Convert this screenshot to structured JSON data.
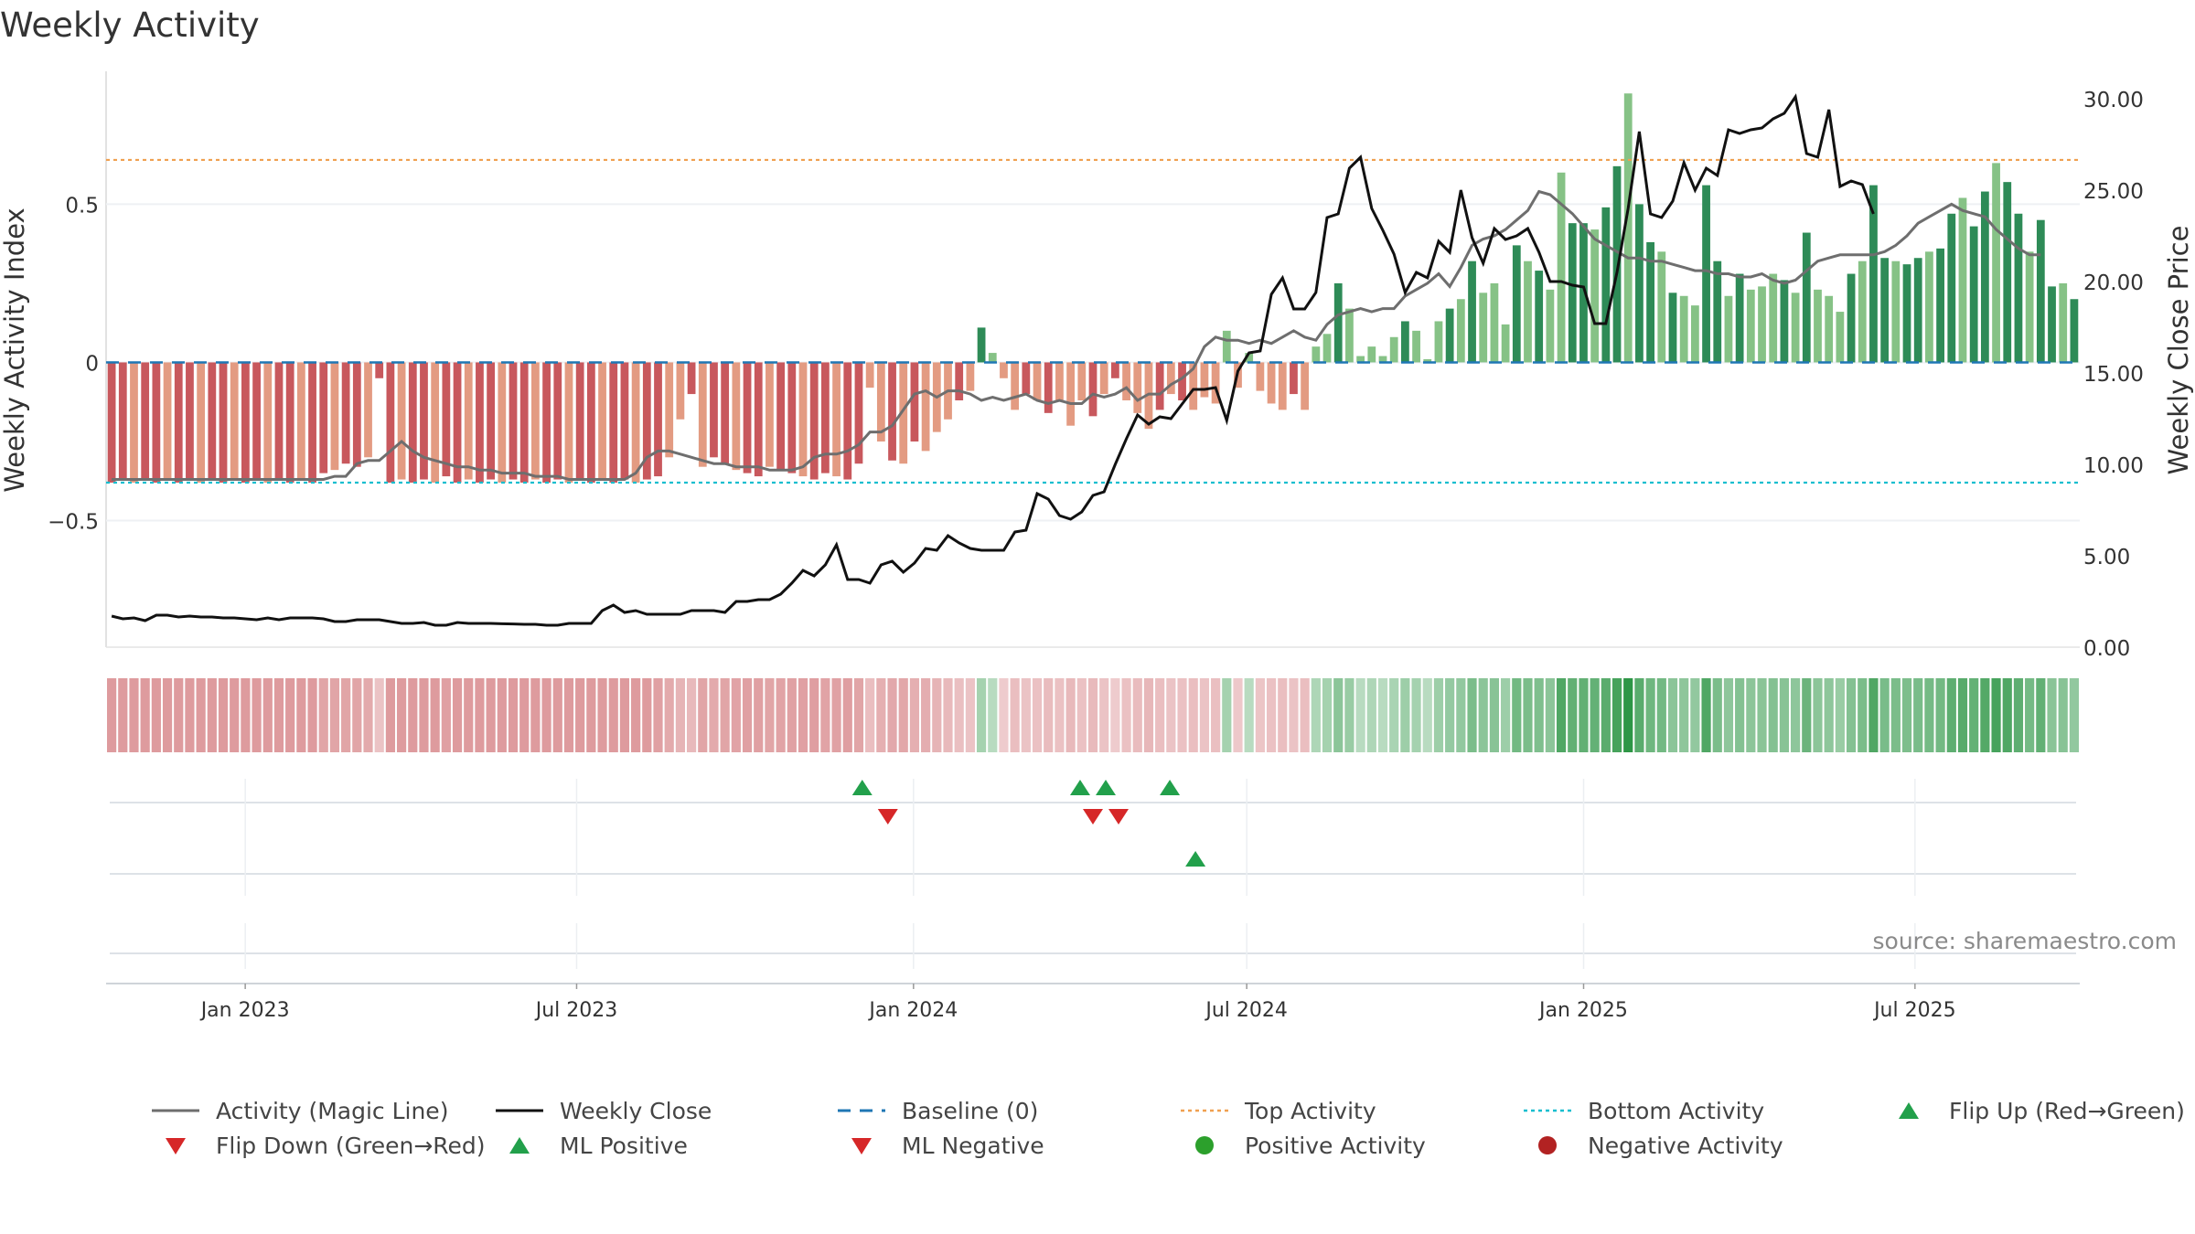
{
  "title": "Weekly Activity",
  "source_note": "source: sharemaestro.com",
  "colors": {
    "strong_red": "#c8585d",
    "light_red": "#e39b82",
    "strong_green": "#2e8b57",
    "light_green": "#86c286",
    "magic_line": "#6e6e6e",
    "close_line": "#111111",
    "baseline": "#1f77b4",
    "top_activity": "#f0a050",
    "bottom_activity": "#17becf",
    "flip_up": "#22a04b",
    "flip_down": "#d62728",
    "positive_dot": "#2ca02c",
    "negative_dot": "#b22222"
  },
  "chart_data": {
    "type": "bar",
    "title": "Weekly Activity",
    "ylabel": "Weekly Activity Index",
    "y2label": "Weekly Close Price",
    "ylim": [
      -0.9,
      0.92
    ],
    "y2lim": [
      0,
      31.5
    ],
    "yticks": [
      "0.5",
      "0",
      "−0.5"
    ],
    "yticks_values": [
      0.5,
      0,
      -0.5
    ],
    "y2ticks": [
      "30.00",
      "25.00",
      "20.00",
      "15.00",
      "10.00",
      "5.00",
      "0.00"
    ],
    "y2ticks_values": [
      30,
      25,
      20,
      15,
      10,
      5,
      0
    ],
    "x_start": "2022-10-17",
    "x_end": "2025-09-29",
    "xticks": [
      {
        "label": "Jan 2023",
        "date": "2023-01-01"
      },
      {
        "label": "Jul 2023",
        "date": "2023-07-01"
      },
      {
        "label": "Jan 2024",
        "date": "2024-01-01"
      },
      {
        "label": "Jul 2024",
        "date": "2024-07-01"
      },
      {
        "label": "Jan 2025",
        "date": "2025-01-01"
      },
      {
        "label": "Jul 2025",
        "date": "2025-07-01"
      }
    ],
    "top_activity": 0.64,
    "bottom_activity": -0.38,
    "baseline": 0,
    "activity": [
      -0.38,
      -0.37,
      -0.38,
      -0.37,
      -0.38,
      -0.37,
      -0.38,
      -0.37,
      -0.38,
      -0.37,
      -0.38,
      -0.37,
      -0.38,
      -0.37,
      -0.38,
      -0.37,
      -0.38,
      -0.37,
      -0.38,
      -0.35,
      -0.34,
      -0.32,
      -0.33,
      -0.3,
      -0.05,
      -0.38,
      -0.37,
      -0.38,
      -0.37,
      -0.38,
      -0.36,
      -0.38,
      -0.37,
      -0.38,
      -0.37,
      -0.38,
      -0.37,
      -0.38,
      -0.37,
      -0.38,
      -0.37,
      -0.38,
      -0.37,
      -0.38,
      -0.37,
      -0.38,
      -0.37,
      -0.38,
      -0.37,
      -0.36,
      -0.3,
      -0.18,
      -0.1,
      -0.33,
      -0.3,
      -0.32,
      -0.34,
      -0.35,
      -0.36,
      -0.33,
      -0.34,
      -0.35,
      -0.36,
      -0.37,
      -0.35,
      -0.36,
      -0.37,
      -0.32,
      -0.08,
      -0.25,
      -0.31,
      -0.32,
      -0.25,
      -0.28,
      -0.22,
      -0.18,
      -0.12,
      -0.09,
      0.11,
      0.03,
      -0.05,
      -0.15,
      -0.1,
      -0.12,
      -0.16,
      -0.12,
      -0.2,
      -0.12,
      -0.17,
      -0.1,
      -0.05,
      -0.12,
      -0.16,
      -0.21,
      -0.15,
      -0.1,
      -0.12,
      -0.15,
      -0.11,
      -0.13,
      0.1,
      -0.08,
      0.03,
      -0.09,
      -0.13,
      -0.15,
      -0.1,
      -0.15,
      0.05,
      0.09,
      0.25,
      0.17,
      0.02,
      0.05,
      0.02,
      0.08,
      0.13,
      0.1,
      0.01,
      0.13,
      0.17,
      0.2,
      0.32,
      0.22,
      0.25,
      0.12,
      0.37,
      0.32,
      0.29,
      0.23,
      0.6,
      0.44,
      0.44,
      0.42,
      0.49,
      0.62,
      0.85,
      0.5,
      0.38,
      0.35,
      0.22,
      0.21,
      0.18,
      0.56,
      0.32,
      0.21,
      0.28,
      0.23,
      0.24,
      0.28,
      0.26,
      0.22,
      0.41,
      0.23,
      0.21,
      0.16,
      0.28,
      0.32,
      0.56,
      0.33,
      0.32,
      0.31,
      0.33,
      0.35,
      0.36,
      0.47,
      0.52,
      0.43,
      0.54,
      0.63,
      0.57,
      0.47,
      0.35,
      0.45,
      0.24,
      0.25,
      0.2
    ],
    "magic_line": [
      -0.37,
      -0.37,
      -0.37,
      -0.37,
      -0.37,
      -0.37,
      -0.37,
      -0.37,
      -0.37,
      -0.37,
      -0.37,
      -0.37,
      -0.37,
      -0.37,
      -0.37,
      -0.37,
      -0.37,
      -0.37,
      -0.37,
      -0.37,
      -0.36,
      -0.36,
      -0.32,
      -0.31,
      -0.31,
      -0.28,
      -0.25,
      -0.28,
      -0.3,
      -0.31,
      -0.32,
      -0.33,
      -0.33,
      -0.34,
      -0.34,
      -0.35,
      -0.35,
      -0.35,
      -0.36,
      -0.36,
      -0.36,
      -0.37,
      -0.37,
      -0.37,
      -0.37,
      -0.37,
      -0.37,
      -0.35,
      -0.3,
      -0.28,
      -0.28,
      -0.29,
      -0.3,
      -0.31,
      -0.32,
      -0.32,
      -0.33,
      -0.33,
      -0.33,
      -0.34,
      -0.34,
      -0.34,
      -0.33,
      -0.3,
      -0.29,
      -0.29,
      -0.28,
      -0.26,
      -0.22,
      -0.22,
      -0.2,
      -0.15,
      -0.1,
      -0.09,
      -0.11,
      -0.09,
      -0.09,
      -0.1,
      -0.12,
      -0.11,
      -0.12,
      -0.11,
      -0.1,
      -0.12,
      -0.13,
      -0.12,
      -0.13,
      -0.13,
      -0.1,
      -0.11,
      -0.1,
      -0.08,
      -0.12,
      -0.1,
      -0.1,
      -0.07,
      -0.05,
      -0.02,
      0.05,
      0.08,
      0.07,
      0.07,
      0.06,
      0.07,
      0.06,
      0.08,
      0.1,
      0.08,
      0.07,
      0.12,
      0.15,
      0.16,
      0.17,
      0.16,
      0.17,
      0.17,
      0.21,
      0.23,
      0.25,
      0.28,
      0.24,
      0.3,
      0.37,
      0.39,
      0.4,
      0.42,
      0.45,
      0.48,
      0.54,
      0.53,
      0.5,
      0.47,
      0.43,
      0.39,
      0.37,
      0.35,
      0.33,
      0.33,
      0.32,
      0.32,
      0.31,
      0.3,
      0.29,
      0.29,
      0.28,
      0.28,
      0.27,
      0.27,
      0.28,
      0.26,
      0.25,
      0.26,
      0.29,
      0.32,
      0.33,
      0.34,
      0.34,
      0.34,
      0.34,
      0.35,
      0.37,
      0.4,
      0.44,
      0.46,
      0.48,
      0.5,
      0.48,
      0.47,
      0.46,
      0.42,
      0.39,
      0.36,
      0.34,
      0.34
    ],
    "weekly_close": [
      1.7,
      1.55,
      1.6,
      1.45,
      1.75,
      1.75,
      1.65,
      1.7,
      1.65,
      1.65,
      1.6,
      1.6,
      1.55,
      1.5,
      1.6,
      1.5,
      1.6,
      1.6,
      1.6,
      1.55,
      1.4,
      1.4,
      1.5,
      1.5,
      1.5,
      1.4,
      1.3,
      1.3,
      1.35,
      1.2,
      1.2,
      1.35,
      1.3,
      1.3,
      1.3,
      1.28,
      1.27,
      1.25,
      1.25,
      1.2,
      1.2,
      1.3,
      1.3,
      1.3,
      2.0,
      2.3,
      1.9,
      2.0,
      1.8,
      1.8,
      1.8,
      1.8,
      2.0,
      2.0,
      2.0,
      1.9,
      2.5,
      2.5,
      2.6,
      2.6,
      2.9,
      3.5,
      4.2,
      3.9,
      4.5,
      5.6,
      3.7,
      3.7,
      3.5,
      4.5,
      4.7,
      4.1,
      4.6,
      5.4,
      5.3,
      6.1,
      5.7,
      5.4,
      5.3,
      5.3,
      5.3,
      6.3,
      6.4,
      8.4,
      8.1,
      7.2,
      7.0,
      7.4,
      8.3,
      8.5,
      10.0,
      11.4,
      12.7,
      12.2,
      12.6,
      12.5,
      13.3,
      14.1,
      14.1,
      14.2,
      12.4,
      15.1,
      16.1,
      16.2,
      19.3,
      20.2,
      18.5,
      18.5,
      19.4,
      23.5,
      23.7,
      26.2,
      26.8,
      24.0,
      22.8,
      21.5,
      19.4,
      20.5,
      20.2,
      22.2,
      21.6,
      25.0,
      22.4,
      21.0,
      22.9,
      22.3,
      22.5,
      22.9,
      21.6,
      20.0,
      20.0,
      19.8,
      19.7,
      17.7,
      17.7,
      20.5,
      24.0,
      28.2,
      23.7,
      23.5,
      24.4,
      26.5,
      25.0,
      26.2,
      25.8,
      28.3,
      28.1,
      28.3,
      28.4,
      28.9,
      29.2,
      30.1,
      27.0,
      26.8,
      29.4,
      25.2,
      25.5,
      25.3,
      23.7
    ],
    "heatmap": [
      -0.7,
      -0.7,
      -0.7,
      -0.7,
      -0.7,
      -0.7,
      -0.7,
      -0.7,
      -0.7,
      -0.7,
      -0.7,
      -0.7,
      -0.7,
      -0.7,
      -0.7,
      -0.7,
      -0.7,
      -0.7,
      -0.7,
      -0.6,
      -0.6,
      -0.6,
      -0.6,
      -0.55,
      -0.3,
      -0.7,
      -0.7,
      -0.7,
      -0.7,
      -0.7,
      -0.65,
      -0.7,
      -0.7,
      -0.7,
      -0.7,
      -0.7,
      -0.7,
      -0.7,
      -0.7,
      -0.7,
      -0.7,
      -0.7,
      -0.7,
      -0.7,
      -0.7,
      -0.7,
      -0.7,
      -0.7,
      -0.7,
      -0.65,
      -0.55,
      -0.45,
      -0.4,
      -0.6,
      -0.55,
      -0.6,
      -0.62,
      -0.65,
      -0.65,
      -0.6,
      -0.62,
      -0.63,
      -0.65,
      -0.66,
      -0.62,
      -0.64,
      -0.66,
      -0.6,
      -0.35,
      -0.5,
      -0.56,
      -0.58,
      -0.5,
      -0.52,
      -0.45,
      -0.4,
      -0.33,
      -0.3,
      0.3,
      0.2,
      -0.22,
      -0.35,
      -0.3,
      -0.32,
      -0.36,
      -0.32,
      -0.4,
      -0.32,
      -0.38,
      -0.3,
      -0.22,
      -0.32,
      -0.36,
      -0.42,
      -0.35,
      -0.3,
      -0.32,
      -0.35,
      -0.3,
      -0.33,
      0.3,
      -0.25,
      0.2,
      -0.28,
      -0.32,
      -0.35,
      -0.3,
      -0.35,
      0.25,
      0.3,
      0.45,
      0.38,
      0.2,
      0.25,
      0.2,
      0.28,
      0.35,
      0.3,
      0.2,
      0.35,
      0.4,
      0.42,
      0.55,
      0.45,
      0.48,
      0.35,
      0.6,
      0.55,
      0.52,
      0.45,
      0.8,
      0.7,
      0.7,
      0.68,
      0.75,
      0.85,
      1.0,
      0.75,
      0.62,
      0.6,
      0.45,
      0.44,
      0.42,
      0.8,
      0.55,
      0.44,
      0.5,
      0.45,
      0.46,
      0.5,
      0.48,
      0.44,
      0.65,
      0.45,
      0.44,
      0.38,
      0.5,
      0.55,
      0.8,
      0.56,
      0.55,
      0.54,
      0.56,
      0.58,
      0.6,
      0.72,
      0.76,
      0.68,
      0.78,
      0.85,
      0.8,
      0.72,
      0.58,
      0.7,
      0.46,
      0.48,
      0.42
    ],
    "markers": {
      "flip_up": [
        {
          "date": "2023-12-04"
        },
        {
          "date": "2024-04-01"
        },
        {
          "date": "2024-04-15"
        },
        {
          "date": "2024-05-20"
        }
      ],
      "flip_down": [
        {
          "date": "2023-12-18"
        },
        {
          "date": "2024-04-08"
        },
        {
          "date": "2024-04-22"
        }
      ],
      "ml_positive": [
        {
          "date": "2024-06-03"
        }
      ],
      "ml_negative": []
    }
  },
  "legend": [
    {
      "label": "Activity (Magic Line)",
      "kind": "line",
      "color": "#6e6e6e"
    },
    {
      "label": "Weekly Close",
      "kind": "line",
      "color": "#111111"
    },
    {
      "label": "Baseline (0)",
      "kind": "dash",
      "color": "#1f77b4"
    },
    {
      "label": "Top Activity",
      "kind": "dot",
      "color": "#f0a050"
    },
    {
      "label": "Bottom Activity",
      "kind": "dot",
      "color": "#17becf"
    },
    {
      "label": "Flip Up (Red→Green)",
      "kind": "tri-up",
      "color": "#22a04b"
    },
    {
      "label": "Flip Down (Green→Red)",
      "kind": "tri-down",
      "color": "#d62728"
    },
    {
      "label": "ML Positive",
      "kind": "tri-up",
      "color": "#22a04b"
    },
    {
      "label": "ML Negative",
      "kind": "tri-down",
      "color": "#d62728"
    },
    {
      "label": "Positive Activity",
      "kind": "circle",
      "color": "#2ca02c"
    },
    {
      "label": "Negative Activity",
      "kind": "circle",
      "color": "#b22222"
    }
  ]
}
